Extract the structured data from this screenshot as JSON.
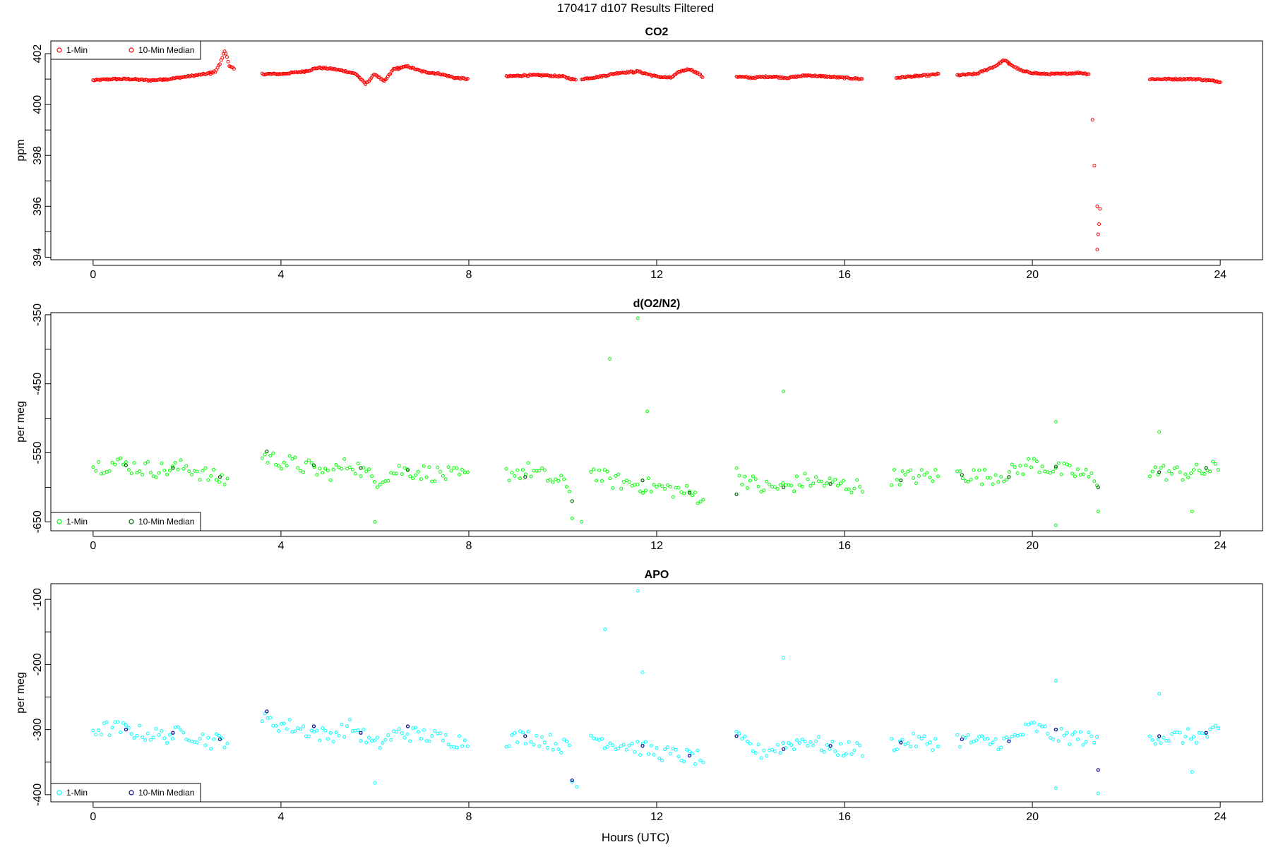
{
  "figure": {
    "title": "170417   d107   Results Filtered",
    "xlabel": "Hours (UTC)"
  },
  "chart_data": [
    {
      "type": "scatter",
      "title": "CO2",
      "ylabel": "ppm",
      "xlabel": "",
      "xlim": [
        -0.9,
        24.9
      ],
      "ylim": [
        393.9,
        402.5
      ],
      "xticks": [
        0,
        4,
        8,
        12,
        16,
        20,
        24
      ],
      "yticks": [
        394,
        396,
        398,
        400,
        402
      ],
      "legend_placement": "top-left",
      "series": [
        {
          "name": "1-Min",
          "color": "#ff0000",
          "segments": [
            {
              "x": [
                0.0,
                0.4,
                0.8,
                1.2,
                1.6,
                2.0,
                2.4,
                2.6,
                2.7,
                2.8,
                2.85,
                2.9,
                3.0
              ],
              "y": [
                400.95,
                401.0,
                401.0,
                400.95,
                401.0,
                401.1,
                401.2,
                401.3,
                401.6,
                402.1,
                401.9,
                401.5,
                401.4
              ]
            },
            {
              "x": [
                3.6,
                4.0,
                4.5,
                4.8,
                5.1,
                5.4,
                5.6,
                5.8,
                6.0,
                6.2,
                6.4,
                6.7,
                7.0,
                7.4,
                7.7,
                8.0
              ],
              "y": [
                401.2,
                401.2,
                401.3,
                401.45,
                401.4,
                401.3,
                401.2,
                400.8,
                401.2,
                400.9,
                401.4,
                401.5,
                401.3,
                401.2,
                401.05,
                401.0
              ]
            },
            {
              "x": [
                8.8,
                9.2,
                9.6,
                10.0,
                10.3
              ],
              "y": [
                401.1,
                401.15,
                401.15,
                401.1,
                400.95
              ]
            },
            {
              "x": [
                10.4,
                10.8,
                11.2,
                11.6,
                12.0,
                12.3,
                12.5,
                12.7,
                12.9,
                13.0
              ],
              "y": [
                401.0,
                401.1,
                401.25,
                401.3,
                401.1,
                401.05,
                401.3,
                401.4,
                401.2,
                401.05
              ]
            },
            {
              "x": [
                13.7,
                14.0,
                14.4,
                14.8,
                15.2,
                15.6,
                16.0,
                16.4
              ],
              "y": [
                401.1,
                401.05,
                401.1,
                401.05,
                401.15,
                401.1,
                401.05,
                401.0
              ]
            },
            {
              "x": [
                17.1,
                17.4,
                17.8,
                18.0
              ],
              "y": [
                401.05,
                401.1,
                401.15,
                401.2
              ]
            },
            {
              "x": [
                18.4,
                18.8,
                19.2,
                19.4,
                19.6,
                19.8,
                20.2,
                20.6,
                21.0,
                21.2
              ],
              "y": [
                401.15,
                401.2,
                401.5,
                401.75,
                401.5,
                401.3,
                401.2,
                401.2,
                401.25,
                401.2
              ]
            },
            {
              "x": [
                22.5,
                23.0,
                23.5,
                24.0
              ],
              "y": [
                401.0,
                401.0,
                401.0,
                400.9
              ]
            }
          ],
          "outliers": {
            "x": [
              21.28,
              21.32,
              21.38,
              21.4,
              21.42,
              21.44,
              21.38
            ],
            "y": [
              399.4,
              397.6,
              394.3,
              394.9,
              395.3,
              395.9,
              396.0
            ]
          }
        },
        {
          "name": "10-Min Median",
          "color": "#ff0000",
          "points": {
            "x": [
              0.5,
              1.5,
              2.5,
              4.5,
              6.5,
              9.5,
              11.5,
              14.5,
              15.5,
              17.5,
              19.5,
              23.0
            ],
            "y": [
              401.0,
              401.0,
              401.2,
              401.3,
              401.4,
              401.15,
              401.25,
              401.1,
              401.1,
              401.1,
              401.6,
              401.0
            ]
          }
        }
      ]
    },
    {
      "type": "scatter",
      "title": "d(O2/N2)",
      "ylabel": "per meg",
      "xlabel": "",
      "xlim": [
        -0.9,
        24.9
      ],
      "ylim": [
        -663,
        -347
      ],
      "xticks": [
        0,
        4,
        8,
        12,
        16,
        20,
        24
      ],
      "yticks": [
        -350,
        -450,
        -550,
        -650
      ],
      "legend_placement": "bottom-left",
      "series": [
        {
          "name": "1-Min",
          "color": "#00ff00",
          "segments": [
            {
              "x": [
                0.0,
                0.5,
                1.0,
                1.5,
                2.0,
                2.5,
                2.9
              ],
              "y": [
                -570,
                -565,
                -572,
                -575,
                -570,
                -585,
                -590
              ]
            },
            {
              "x": [
                3.6,
                4.0,
                4.5,
                5.0,
                5.5,
                6.0,
                6.5,
                7.0,
                7.5,
                8.0
              ],
              "y": [
                -555,
                -562,
                -570,
                -580,
                -565,
                -590,
                -575,
                -578,
                -582,
                -585
              ]
            },
            {
              "x": [
                8.8,
                9.3,
                9.8,
                10.2
              ],
              "y": [
                -580,
                -575,
                -590,
                -600
              ]
            },
            {
              "x": [
                10.6,
                11.0,
                11.5,
                12.0,
                12.5,
                13.0
              ],
              "y": [
                -575,
                -590,
                -595,
                -600,
                -605,
                -615
              ]
            },
            {
              "x": [
                13.7,
                14.2,
                14.7,
                15.2,
                15.7,
                16.4
              ],
              "y": [
                -580,
                -600,
                -600,
                -590,
                -595,
                -600
              ]
            },
            {
              "x": [
                17.0,
                17.5,
                18.0
              ],
              "y": [
                -585,
                -585,
                -583
              ]
            },
            {
              "x": [
                18.4,
                19.0,
                19.5,
                20.0,
                20.5,
                21.0,
                21.4
              ],
              "y": [
                -580,
                -585,
                -580,
                -565,
                -575,
                -580,
                -590
              ]
            },
            {
              "x": [
                22.5,
                23.0,
                23.5,
                24.0
              ],
              "y": [
                -575,
                -580,
                -578,
                -572
              ]
            }
          ],
          "outliers": {
            "x": [
              10.2,
              10.4,
              11.0,
              11.6,
              11.8,
              14.7,
              20.5,
              20.5,
              22.7,
              23.4,
              6.0,
              21.4
            ],
            "y": [
              -645,
              -650,
              -414,
              -355,
              -490,
              -461,
              -505,
              -655,
              -520,
              -635,
              -650,
              -635
            ]
          }
        },
        {
          "name": "10-Min Median",
          "color": "#006400",
          "points": {
            "x": [
              0.7,
              1.7,
              2.7,
              3.7,
              4.7,
              5.7,
              6.7,
              9.2,
              10.2,
              11.7,
              12.7,
              13.7,
              14.7,
              15.7,
              17.2,
              18.5,
              19.5,
              20.5,
              21.4,
              22.7,
              23.7
            ],
            "y": [
              -568,
              -572,
              -585,
              -548,
              -568,
              -572,
              -575,
              -585,
              -620,
              -590,
              -608,
              -610,
              -600,
              -595,
              -590,
              -582,
              -585,
              -570,
              -600,
              -578,
              -572
            ]
          }
        }
      ]
    },
    {
      "type": "scatter",
      "title": "APO",
      "ylabel": "per meg",
      "xlabel": "Hours (UTC)",
      "xlim": [
        -0.9,
        24.9
      ],
      "ylim": [
        -411,
        -76
      ],
      "xticks": [
        0,
        4,
        8,
        12,
        16,
        20,
        24
      ],
      "yticks": [
        -100,
        -200,
        -300,
        -400
      ],
      "legend_placement": "bottom-left",
      "series": [
        {
          "name": "1-Min",
          "color": "#00ffff",
          "segments": [
            {
              "x": [
                0.0,
                0.5,
                1.0,
                1.5,
                2.0,
                2.5,
                2.9
              ],
              "y": [
                -300,
                -298,
                -305,
                -310,
                -305,
                -318,
                -315
              ]
            },
            {
              "x": [
                3.6,
                4.0,
                4.5,
                5.0,
                5.5,
                6.0,
                6.5,
                7.0,
                7.5,
                8.0
              ],
              "y": [
                -285,
                -292,
                -300,
                -310,
                -295,
                -325,
                -305,
                -308,
                -315,
                -318
              ]
            },
            {
              "x": [
                8.8,
                9.3,
                9.8,
                10.2
              ],
              "y": [
                -315,
                -310,
                -320,
                -330
              ]
            },
            {
              "x": [
                10.6,
                11.0,
                11.5,
                12.0,
                12.5,
                13.0
              ],
              "y": [
                -310,
                -320,
                -325,
                -335,
                -340,
                -345
              ]
            },
            {
              "x": [
                13.7,
                14.2,
                14.7,
                15.2,
                15.7,
                16.4
              ],
              "y": [
                -315,
                -335,
                -325,
                -315,
                -330,
                -330
              ]
            },
            {
              "x": [
                17.0,
                17.5,
                18.0
              ],
              "y": [
                -322,
                -318,
                -320
              ]
            },
            {
              "x": [
                18.4,
                19.0,
                19.5,
                20.0,
                20.5,
                21.0,
                21.4
              ],
              "y": [
                -315,
                -320,
                -318,
                -295,
                -310,
                -312,
                -318
              ]
            },
            {
              "x": [
                22.5,
                23.0,
                23.5,
                24.0
              ],
              "y": [
                -310,
                -312,
                -310,
                -305
              ]
            }
          ],
          "outliers": {
            "x": [
              10.2,
              10.3,
              10.9,
              11.6,
              11.7,
              14.7,
              20.5,
              20.5,
              22.7,
              23.4,
              6.0,
              21.4
            ],
            "y": [
              -380,
              -388,
              -146,
              -87,
              -212,
              -190,
              -225,
              -390,
              -245,
              -365,
              -382,
              -398
            ]
          }
        },
        {
          "name": "10-Min Median",
          "color": "#00008b",
          "points": {
            "x": [
              0.7,
              1.7,
              2.7,
              3.7,
              4.7,
              5.7,
              6.7,
              9.2,
              10.2,
              11.7,
              12.7,
              13.7,
              14.7,
              15.7,
              17.2,
              18.5,
              19.5,
              20.5,
              21.4,
              22.7,
              23.7
            ],
            "y": [
              -300,
              -305,
              -315,
              -272,
              -295,
              -305,
              -295,
              -310,
              -378,
              -325,
              -340,
              -310,
              -330,
              -325,
              -320,
              -315,
              -318,
              -300,
              -362,
              -310,
              -305
            ]
          }
        }
      ]
    }
  ]
}
